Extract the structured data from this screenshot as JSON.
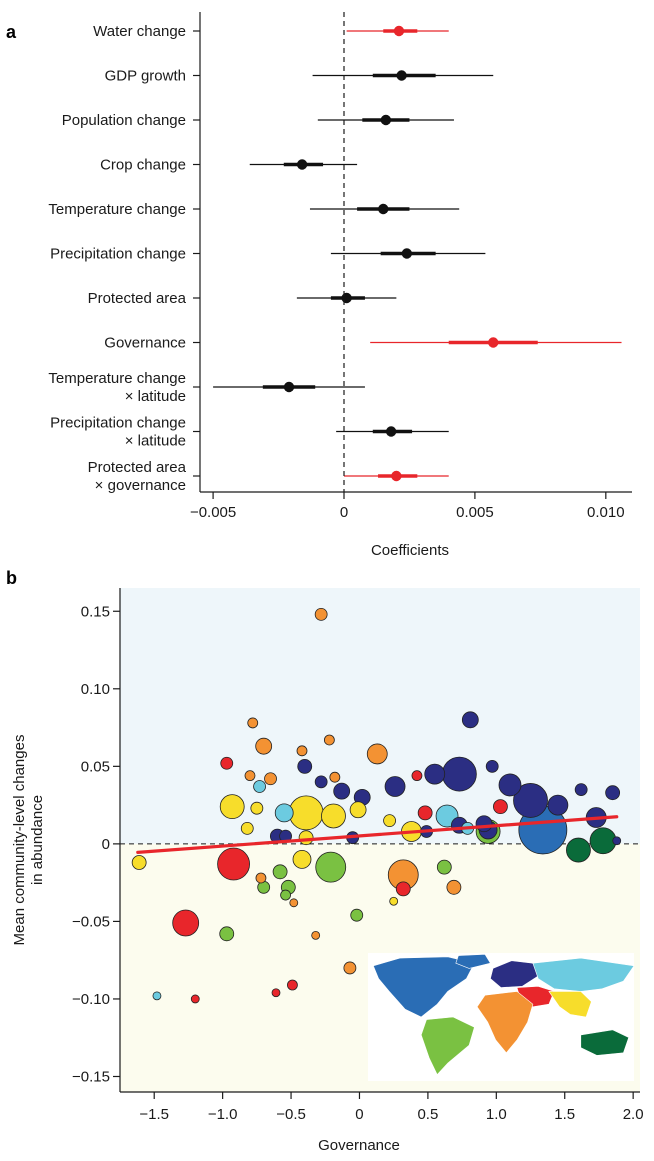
{
  "panel_a_letter": "a",
  "panel_b_letter": "b",
  "chart_data": [
    {
      "type": "forest",
      "xlabel": "Coefficients",
      "xlim": [
        -0.0055,
        0.011
      ],
      "xticks": [
        -0.005,
        0,
        0.005,
        0.01
      ],
      "xtick_labels": [
        "−0.005",
        "0",
        "0.005",
        "0.010"
      ],
      "reference_line": 0,
      "significant_color": "#e8262b",
      "default_color": "#111111",
      "rows": [
        {
          "label": [
            "Water change"
          ],
          "estimate": 0.0021,
          "ci50": [
            0.0015,
            0.0028
          ],
          "ci95": [
            0.0001,
            0.004
          ],
          "significant": true
        },
        {
          "label": [
            "GDP growth"
          ],
          "estimate": 0.0022,
          "ci50": [
            0.0011,
            0.0035
          ],
          "ci95": [
            -0.0012,
            0.0057
          ],
          "significant": false
        },
        {
          "label": [
            "Population change"
          ],
          "estimate": 0.0016,
          "ci50": [
            0.0007,
            0.0025
          ],
          "ci95": [
            -0.001,
            0.0042
          ],
          "significant": false
        },
        {
          "label": [
            "Crop change"
          ],
          "estimate": -0.0016,
          "ci50": [
            -0.0023,
            -0.0008
          ],
          "ci95": [
            -0.0036,
            0.0005
          ],
          "significant": false
        },
        {
          "label": [
            "Temperature change"
          ],
          "estimate": 0.0015,
          "ci50": [
            0.0005,
            0.0025
          ],
          "ci95": [
            -0.0013,
            0.0044
          ],
          "significant": false
        },
        {
          "label": [
            "Precipitation change"
          ],
          "estimate": 0.0024,
          "ci50": [
            0.0014,
            0.0035
          ],
          "ci95": [
            -0.0005,
            0.0054
          ],
          "significant": false
        },
        {
          "label": [
            "Protected area"
          ],
          "estimate": 0.0001,
          "ci50": [
            -0.0005,
            0.0008
          ],
          "ci95": [
            -0.0018,
            0.002
          ],
          "significant": false
        },
        {
          "label": [
            "Governance"
          ],
          "estimate": 0.0057,
          "ci50": [
            0.004,
            0.0074
          ],
          "ci95": [
            0.001,
            0.0106
          ],
          "significant": true
        },
        {
          "label": [
            "Temperature change",
            "× latitude"
          ],
          "estimate": -0.0021,
          "ci50": [
            -0.0031,
            -0.0011
          ],
          "ci95": [
            -0.005,
            0.0008
          ],
          "significant": false
        },
        {
          "label": [
            "Precipitation change",
            "× latitude"
          ],
          "estimate": 0.0018,
          "ci50": [
            0.0011,
            0.0026
          ],
          "ci95": [
            -0.0003,
            0.004
          ],
          "significant": false
        },
        {
          "label": [
            "Protected area",
            "× governance"
          ],
          "estimate": 0.002,
          "ci50": [
            0.0013,
            0.0028
          ],
          "ci95": [
            0.0,
            0.004
          ],
          "significant": true
        }
      ]
    },
    {
      "type": "scatter",
      "xlabel": "Governance",
      "ylabel": [
        "Mean community-level changes",
        "in abundance"
      ],
      "xlim": [
        -1.75,
        2.05
      ],
      "ylim": [
        -0.16,
        0.165
      ],
      "xticks": [
        -1.5,
        -1.0,
        -0.5,
        0.0,
        0.5,
        1.0,
        1.5,
        2.0
      ],
      "xtick_labels": [
        "−1.5",
        "−1.0",
        "−0.5",
        "0",
        "0.5",
        "1.0",
        "1.5",
        "2.0"
      ],
      "yticks": [
        -0.15,
        -0.1,
        -0.05,
        0,
        0.05,
        0.1,
        0.15
      ],
      "ytick_labels": [
        "−0.15",
        "−0.10",
        "−0.05",
        "0",
        "0.05",
        "0.10",
        "0.15"
      ],
      "positive_region_color": "#eef6fa",
      "negative_region_color": "#fcfcee",
      "trend_line": {
        "x": [
          -1.62,
          1.88
        ],
        "y": [
          -0.0055,
          0.0175
        ],
        "color": "#e8262b"
      },
      "region_colors": {
        "north_america": "#2a6db5",
        "south_america": "#7ac142",
        "europe": "#2b2e83",
        "asia": "#6ccbe0",
        "middle_east": "#e8262b",
        "africa": "#f39233",
        "south_asia": "#f7dd2b",
        "oceania": "#0a6b3a"
      },
      "points": [
        {
          "x": -0.28,
          "y": 0.148,
          "size": 5,
          "region": "africa"
        },
        {
          "x": -0.78,
          "y": 0.078,
          "size": 4,
          "region": "africa"
        },
        {
          "x": -0.7,
          "y": 0.063,
          "size": 7,
          "region": "africa"
        },
        {
          "x": -0.42,
          "y": 0.06,
          "size": 4,
          "region": "africa"
        },
        {
          "x": -0.22,
          "y": 0.067,
          "size": 4,
          "region": "africa"
        },
        {
          "x": 0.13,
          "y": 0.058,
          "size": 9,
          "region": "africa"
        },
        {
          "x": -0.97,
          "y": 0.052,
          "size": 5,
          "region": "red"
        },
        {
          "x": -0.8,
          "y": 0.044,
          "size": 4,
          "region": "africa"
        },
        {
          "x": -0.4,
          "y": 0.05,
          "size": 6,
          "region": "europe"
        },
        {
          "x": -0.18,
          "y": 0.043,
          "size": 4,
          "region": "africa"
        },
        {
          "x": 0.81,
          "y": 0.08,
          "size": 7,
          "region": "europe"
        },
        {
          "x": 0.73,
          "y": 0.045,
          "size": 16,
          "region": "europe"
        },
        {
          "x": 0.97,
          "y": 0.05,
          "size": 5,
          "region": "europe"
        },
        {
          "x": 0.42,
          "y": 0.044,
          "size": 4,
          "region": "red"
        },
        {
          "x": 0.55,
          "y": 0.045,
          "size": 9,
          "region": "europe"
        },
        {
          "x": 1.1,
          "y": 0.038,
          "size": 10,
          "region": "europe"
        },
        {
          "x": 1.25,
          "y": 0.028,
          "size": 16,
          "region": "europe"
        },
        {
          "x": 1.45,
          "y": 0.025,
          "size": 9,
          "region": "europe"
        },
        {
          "x": 1.62,
          "y": 0.035,
          "size": 5,
          "region": "europe"
        },
        {
          "x": 1.85,
          "y": 0.033,
          "size": 6,
          "region": "europe"
        },
        {
          "x": -0.65,
          "y": 0.042,
          "size": 5,
          "region": "africa"
        },
        {
          "x": -0.73,
          "y": 0.037,
          "size": 5,
          "region": "asia"
        },
        {
          "x": -0.28,
          "y": 0.04,
          "size": 5,
          "region": "europe"
        },
        {
          "x": -0.13,
          "y": 0.034,
          "size": 7,
          "region": "europe"
        },
        {
          "x": 0.02,
          "y": 0.03,
          "size": 7,
          "region": "europe"
        },
        {
          "x": 0.26,
          "y": 0.037,
          "size": 9,
          "region": "europe"
        },
        {
          "x": 0.64,
          "y": 0.018,
          "size": 10,
          "region": "asia"
        },
        {
          "x": 0.73,
          "y": 0.012,
          "size": 7,
          "region": "europe"
        },
        {
          "x": 0.94,
          "y": 0.009,
          "size": 8,
          "region": "europe"
        },
        {
          "x": 1.03,
          "y": 0.024,
          "size": 6,
          "region": "red"
        },
        {
          "x": 1.34,
          "y": 0.009,
          "size": 23,
          "region": "north_america"
        },
        {
          "x": 1.6,
          "y": -0.004,
          "size": 11,
          "region": "oceania"
        },
        {
          "x": 1.73,
          "y": 0.017,
          "size": 9,
          "region": "europe"
        },
        {
          "x": 1.88,
          "y": 0.002,
          "size": 3,
          "region": "europe"
        },
        {
          "x": 1.78,
          "y": 0.002,
          "size": 12,
          "region": "oceania"
        },
        {
          "x": -0.93,
          "y": 0.024,
          "size": 11,
          "region": "south_asia"
        },
        {
          "x": -0.75,
          "y": 0.023,
          "size": 5,
          "region": "south_asia"
        },
        {
          "x": -0.55,
          "y": 0.02,
          "size": 8,
          "region": "asia"
        },
        {
          "x": -0.39,
          "y": 0.02,
          "size": 16,
          "region": "south_asia"
        },
        {
          "x": -0.19,
          "y": 0.018,
          "size": 11,
          "region": "south_asia"
        },
        {
          "x": -0.01,
          "y": 0.022,
          "size": 7,
          "region": "south_asia"
        },
        {
          "x": 0.22,
          "y": 0.015,
          "size": 5,
          "region": "south_asia"
        },
        {
          "x": 0.38,
          "y": 0.008,
          "size": 9,
          "region": "south_asia"
        },
        {
          "x": 0.48,
          "y": 0.02,
          "size": 6,
          "region": "red"
        },
        {
          "x": 0.49,
          "y": 0.008,
          "size": 5,
          "region": "europe"
        },
        {
          "x": 0.94,
          "y": 0.008,
          "size": 11,
          "region": "south_america"
        },
        {
          "x": 0.91,
          "y": 0.013,
          "size": 7,
          "region": "europe"
        },
        {
          "x": 0.79,
          "y": 0.01,
          "size": 5,
          "region": "asia"
        },
        {
          "x": -0.82,
          "y": 0.01,
          "size": 5,
          "region": "south_asia"
        },
        {
          "x": -0.6,
          "y": 0.005,
          "size": 6,
          "region": "europe"
        },
        {
          "x": -0.54,
          "y": 0.005,
          "size": 5,
          "region": "europe"
        },
        {
          "x": -0.39,
          "y": 0.004,
          "size": 6,
          "region": "south_asia"
        },
        {
          "x": -0.05,
          "y": 0.004,
          "size": 5,
          "region": "europe"
        },
        {
          "x": -1.61,
          "y": -0.012,
          "size": 6,
          "region": "south_asia"
        },
        {
          "x": -0.92,
          "y": -0.013,
          "size": 15,
          "region": "red"
        },
        {
          "x": -0.58,
          "y": -0.018,
          "size": 6,
          "region": "south_america"
        },
        {
          "x": -0.42,
          "y": -0.01,
          "size": 8,
          "region": "south_asia"
        },
        {
          "x": -0.21,
          "y": -0.015,
          "size": 14,
          "region": "south_america"
        },
        {
          "x": -0.72,
          "y": -0.022,
          "size": 4,
          "region": "africa"
        },
        {
          "x": -0.7,
          "y": -0.028,
          "size": 5,
          "region": "south_america"
        },
        {
          "x": -0.54,
          "y": -0.033,
          "size": 4,
          "region": "south_america"
        },
        {
          "x": -0.52,
          "y": -0.028,
          "size": 6,
          "region": "south_america"
        },
        {
          "x": -0.48,
          "y": -0.038,
          "size": 3,
          "region": "africa"
        },
        {
          "x": 0.32,
          "y": -0.02,
          "size": 14,
          "region": "africa"
        },
        {
          "x": 0.32,
          "y": -0.029,
          "size": 6,
          "region": "red"
        },
        {
          "x": 0.25,
          "y": -0.037,
          "size": 3,
          "region": "south_asia"
        },
        {
          "x": 0.62,
          "y": -0.015,
          "size": 6,
          "region": "south_america"
        },
        {
          "x": 0.69,
          "y": -0.028,
          "size": 6,
          "region": "africa"
        },
        {
          "x": -1.27,
          "y": -0.051,
          "size": 12,
          "region": "red"
        },
        {
          "x": -0.97,
          "y": -0.058,
          "size": 6,
          "region": "south_america"
        },
        {
          "x": -0.02,
          "y": -0.046,
          "size": 5,
          "region": "south_america"
        },
        {
          "x": -0.32,
          "y": -0.059,
          "size": 3,
          "region": "africa"
        },
        {
          "x": -0.07,
          "y": -0.08,
          "size": 5,
          "region": "africa"
        },
        {
          "x": -1.48,
          "y": -0.098,
          "size": 3,
          "region": "asia"
        },
        {
          "x": -1.2,
          "y": -0.1,
          "size": 3,
          "region": "red"
        },
        {
          "x": -0.61,
          "y": -0.096,
          "size": 3,
          "region": "red"
        },
        {
          "x": -0.49,
          "y": -0.091,
          "size": 4,
          "region": "red"
        }
      ]
    }
  ]
}
